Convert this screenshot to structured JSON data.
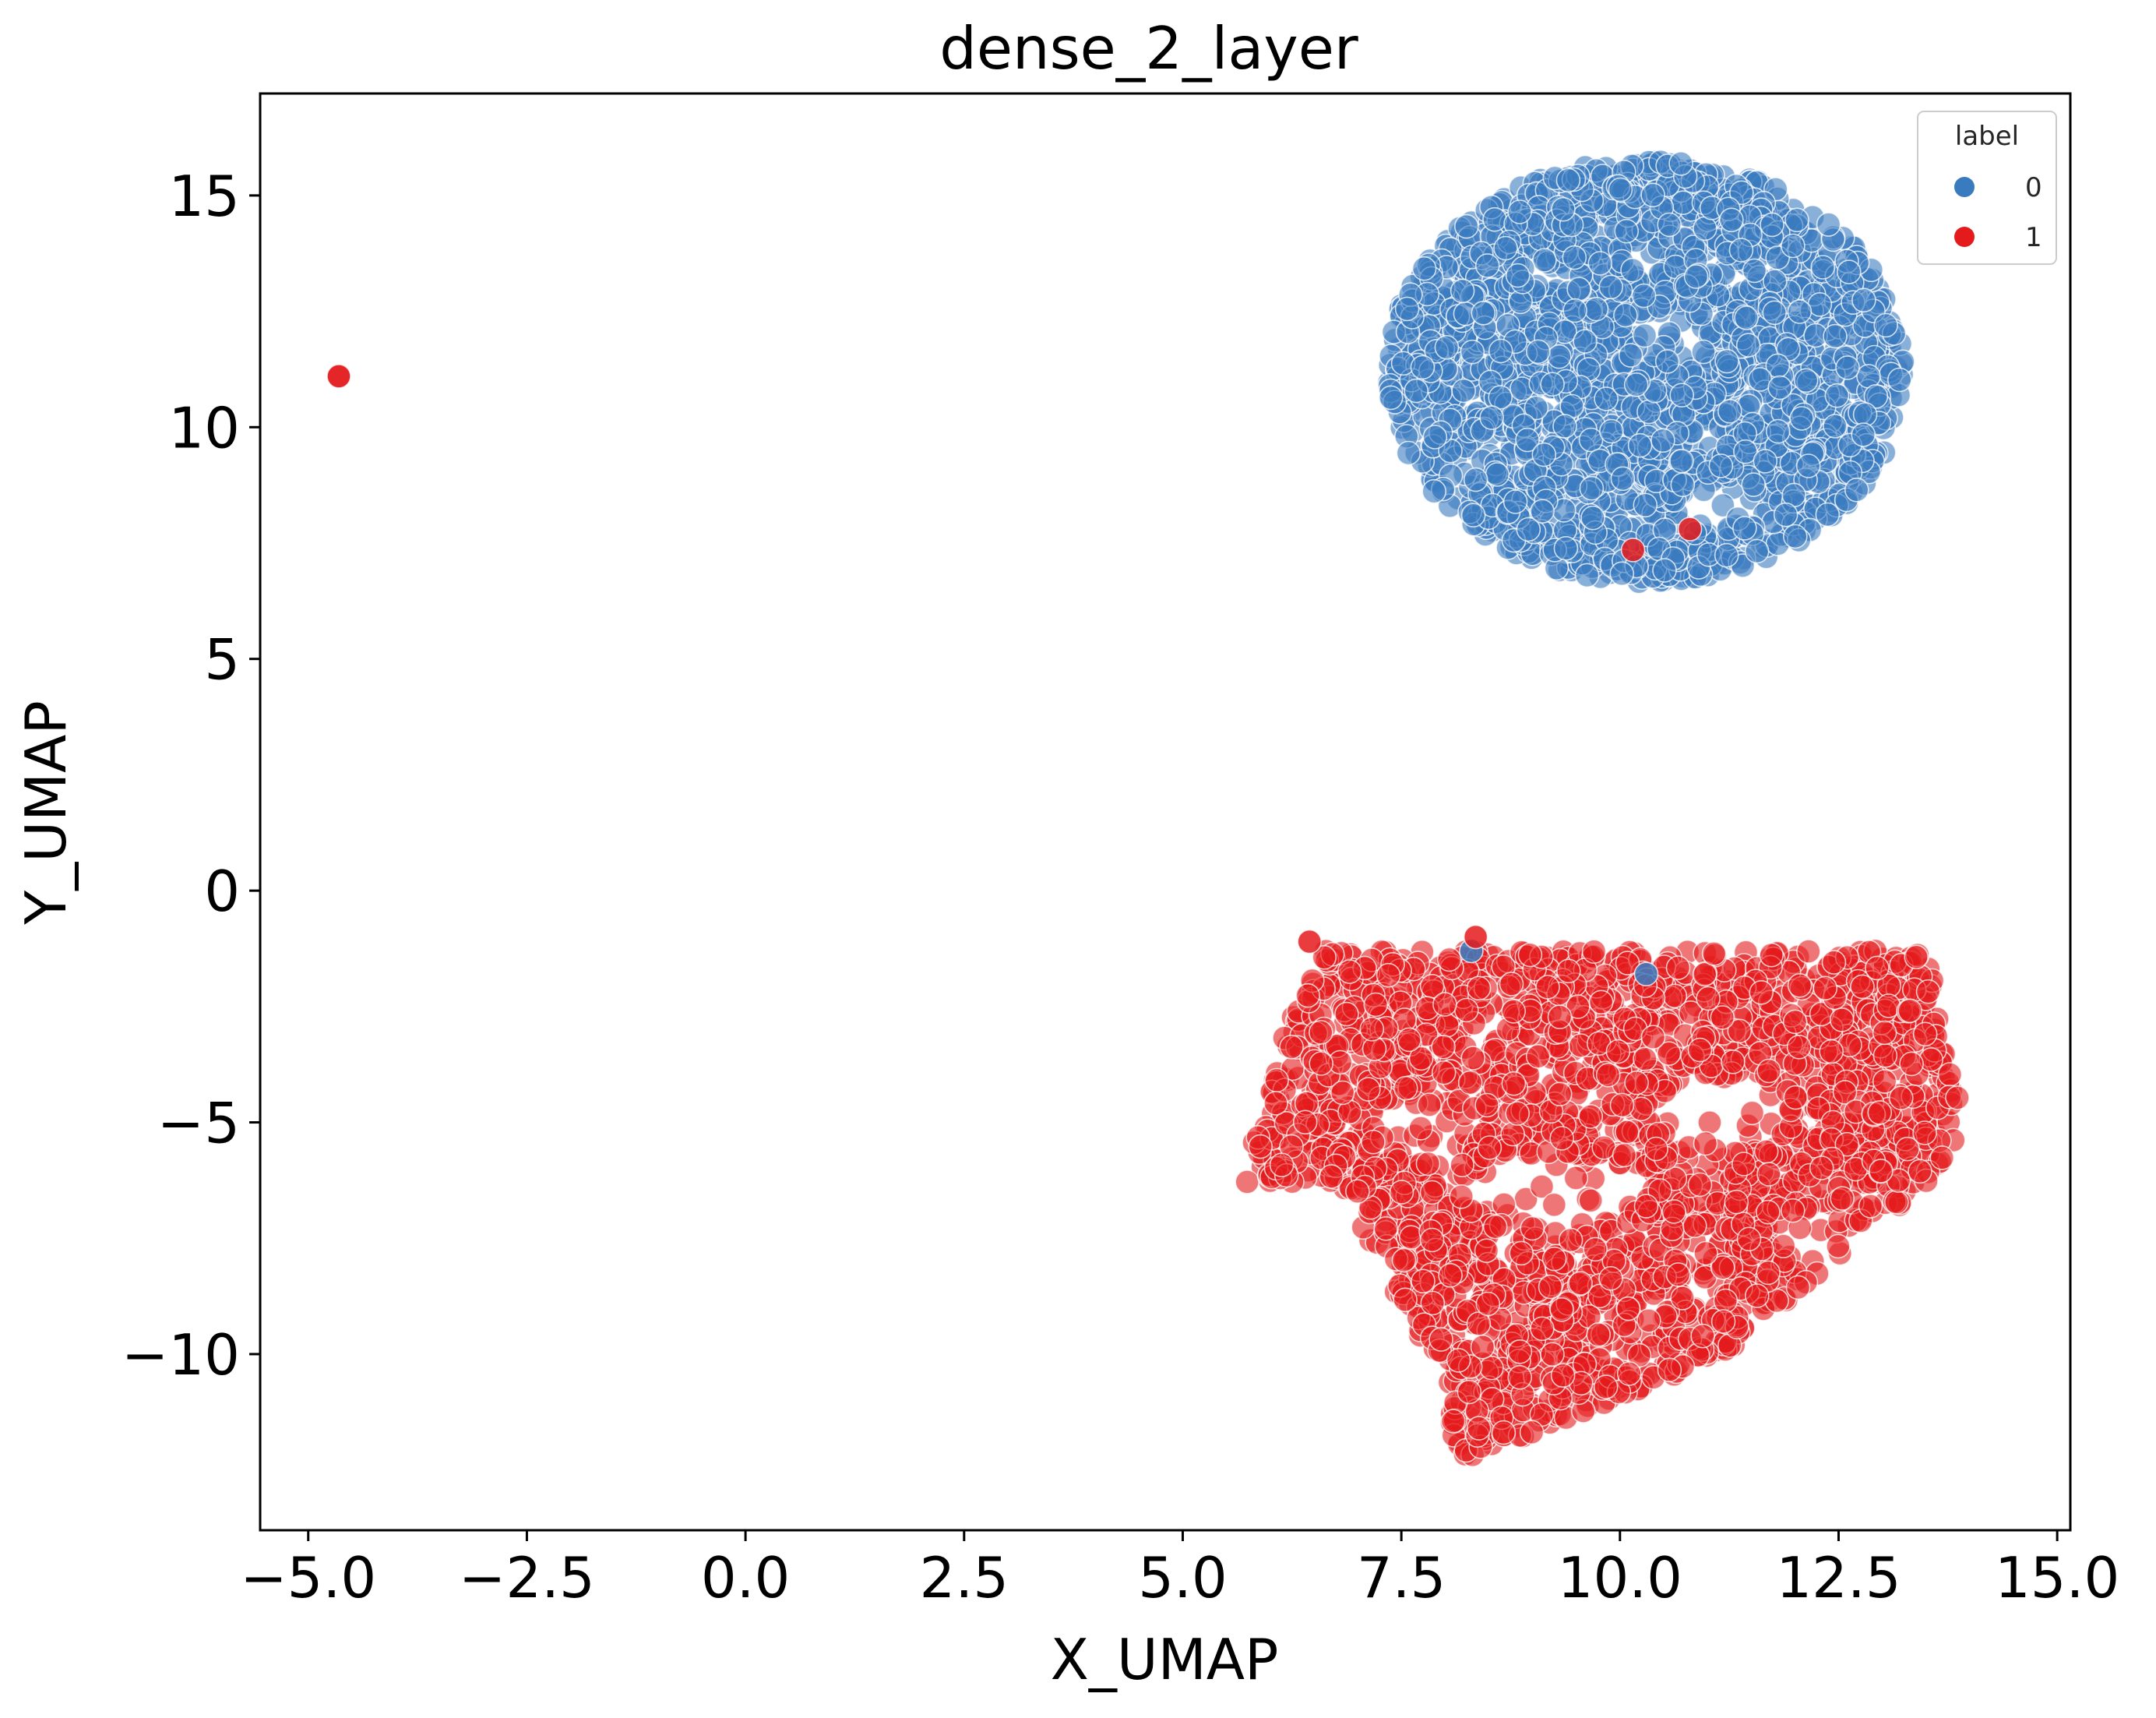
{
  "chart_data": {
    "type": "scatter",
    "title": "dense_2_layer",
    "xlabel": "X_UMAP",
    "ylabel": "Y_UMAP",
    "xlim": [
      -5.55,
      15.15
    ],
    "ylim": [
      -13.8,
      17.2
    ],
    "xticks": [
      -5.0,
      -2.5,
      0.0,
      2.5,
      5.0,
      7.5,
      10.0,
      12.5,
      15.0
    ],
    "xtick_labels": [
      "−5.0",
      "−2.5",
      "0.0",
      "2.5",
      "5.0",
      "7.5",
      "10.0",
      "12.5",
      "15.0"
    ],
    "yticks": [
      -10,
      -5,
      0,
      5,
      10,
      15
    ],
    "ytick_labels": [
      "−10",
      "−5",
      "0",
      "5",
      "10",
      "15"
    ],
    "grid": false,
    "legend": {
      "title": "label",
      "placement": "top-right",
      "entries": [
        {
          "label": "0",
          "color": "#3a7bbf"
        },
        {
          "label": "1",
          "color": "#e41a1c"
        }
      ]
    },
    "series": [
      {
        "name": "0",
        "color": "#3a7bbf",
        "approx_points": 2200,
        "region": {
          "center": [
            10.3,
            11.3
          ],
          "x_range": [
            7.3,
            13.3
          ],
          "y_range": [
            6.5,
            15.8
          ]
        },
        "points": [
          {
            "x": 8.3,
            "y": -1.3
          },
          {
            "x": 10.3,
            "y": -1.8
          }
        ]
      },
      {
        "name": "1",
        "color": "#e41a1c",
        "approx_points": 2300,
        "region": {
          "x_range": [
            5.4,
            14.1
          ],
          "y_range": [
            -12.4,
            -1.0
          ]
        },
        "points": [
          {
            "x": -4.65,
            "y": 11.1
          },
          {
            "x": 6.45,
            "y": -1.1
          },
          {
            "x": 8.35,
            "y": -1.0
          },
          {
            "x": 10.15,
            "y": 7.35
          },
          {
            "x": 10.8,
            "y": 7.8
          }
        ]
      }
    ]
  }
}
